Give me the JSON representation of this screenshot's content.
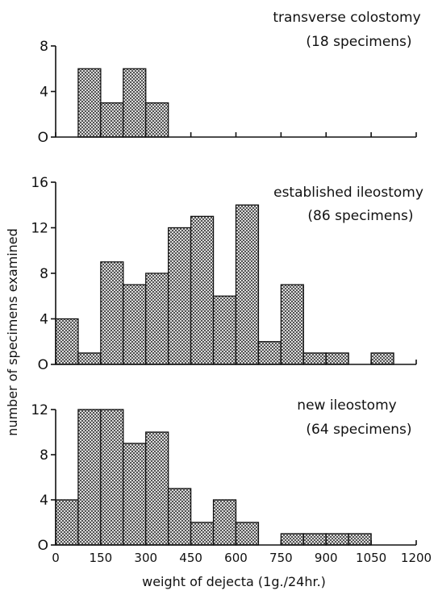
{
  "chart_data": [
    {
      "type": "bar",
      "title": "transverse colostomy",
      "subtitle": "(18 specimens)",
      "bin_width": 75,
      "bins": [
        {
          "x0": 75,
          "x1": 150,
          "count": 6
        },
        {
          "x0": 150,
          "x1": 225,
          "count": 3
        },
        {
          "x0": 225,
          "x1": 300,
          "count": 6
        },
        {
          "x0": 300,
          "x1": 375,
          "count": 3
        }
      ],
      "ylim": [
        0,
        8
      ],
      "yticks": [
        0,
        4,
        8
      ],
      "ytick_labels": [
        "O",
        "4",
        "8"
      ]
    },
    {
      "type": "bar",
      "title": "established ileostomy",
      "subtitle": "(86 specimens)",
      "bin_width": 75,
      "bins": [
        {
          "x0": 0,
          "x1": 75,
          "count": 4
        },
        {
          "x0": 75,
          "x1": 150,
          "count": 1
        },
        {
          "x0": 150,
          "x1": 225,
          "count": 9
        },
        {
          "x0": 225,
          "x1": 300,
          "count": 7
        },
        {
          "x0": 300,
          "x1": 375,
          "count": 8
        },
        {
          "x0": 375,
          "x1": 450,
          "count": 12
        },
        {
          "x0": 450,
          "x1": 525,
          "count": 13
        },
        {
          "x0": 525,
          "x1": 600,
          "count": 6
        },
        {
          "x0": 600,
          "x1": 675,
          "count": 14
        },
        {
          "x0": 675,
          "x1": 750,
          "count": 2
        },
        {
          "x0": 750,
          "x1": 825,
          "count": 7
        },
        {
          "x0": 825,
          "x1": 900,
          "count": 1
        },
        {
          "x0": 900,
          "x1": 975,
          "count": 1
        },
        {
          "x0": 1050,
          "x1": 1125,
          "count": 1
        }
      ],
      "ylim": [
        0,
        16
      ],
      "yticks": [
        0,
        4,
        8,
        12,
        16
      ],
      "ytick_labels": [
        "O",
        "4",
        "8",
        "12",
        "16"
      ]
    },
    {
      "type": "bar",
      "title": "new ileostomy",
      "subtitle": "(64 specimens)",
      "bin_width": 75,
      "bins": [
        {
          "x0": 0,
          "x1": 75,
          "count": 4
        },
        {
          "x0": 75,
          "x1": 150,
          "count": 12
        },
        {
          "x0": 150,
          "x1": 225,
          "count": 12
        },
        {
          "x0": 225,
          "x1": 300,
          "count": 9
        },
        {
          "x0": 300,
          "x1": 375,
          "count": 10
        },
        {
          "x0": 375,
          "x1": 450,
          "count": 5
        },
        {
          "x0": 450,
          "x1": 525,
          "count": 2
        },
        {
          "x0": 525,
          "x1": 600,
          "count": 4
        },
        {
          "x0": 600,
          "x1": 675,
          "count": 2
        },
        {
          "x0": 750,
          "x1": 825,
          "count": 1
        },
        {
          "x0": 825,
          "x1": 900,
          "count": 1
        },
        {
          "x0": 900,
          "x1": 975,
          "count": 1
        },
        {
          "x0": 975,
          "x1": 1050,
          "count": 1
        }
      ],
      "ylim": [
        0,
        12
      ],
      "yticks": [
        0,
        4,
        8,
        12
      ],
      "ytick_labels": [
        "O",
        "4",
        "8",
        "12"
      ]
    }
  ],
  "x_axis": {
    "xlim": [
      0,
      1200
    ],
    "ticks": [
      0,
      150,
      300,
      450,
      600,
      750,
      900,
      1050,
      1200
    ],
    "tick_labels": [
      "0",
      "150",
      "300",
      "450",
      "600",
      "750",
      "900",
      "1050",
      "1200"
    ],
    "label": "weight of dejecta (1g./24hr.)"
  },
  "y_axis": {
    "label": "number of specimens examined"
  },
  "grid": false
}
